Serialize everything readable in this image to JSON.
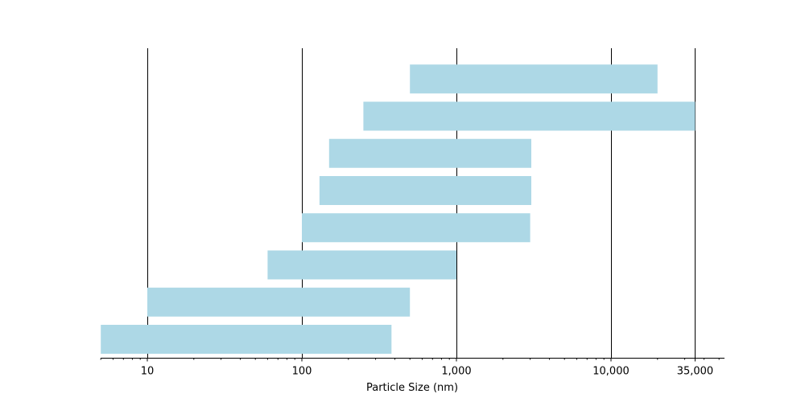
{
  "chart_data": {
    "type": "bar",
    "orientation": "horizontal",
    "xlabel": "Particle Size (nm)",
    "ylabel": "",
    "x_scale": "log",
    "xlim": [
      5,
      50000
    ],
    "xticks": [
      10,
      100,
      1000,
      10000,
      35000
    ],
    "xtick_labels": [
      "10",
      "100",
      "1,000",
      "10,000",
      "35,000"
    ],
    "grid": "vertical lines at major ticks",
    "legend": "none",
    "bar_color": "#add8e6",
    "ranges": [
      {
        "start": 5,
        "end": 380
      },
      {
        "start": 10,
        "end": 500
      },
      {
        "start": 60,
        "end": 1000
      },
      {
        "start": 100,
        "end": 3000
      },
      {
        "start": 130,
        "end": 3050
      },
      {
        "start": 150,
        "end": 3050
      },
      {
        "start": 250,
        "end": 35000
      },
      {
        "start": 500,
        "end": 20000
      }
    ]
  }
}
